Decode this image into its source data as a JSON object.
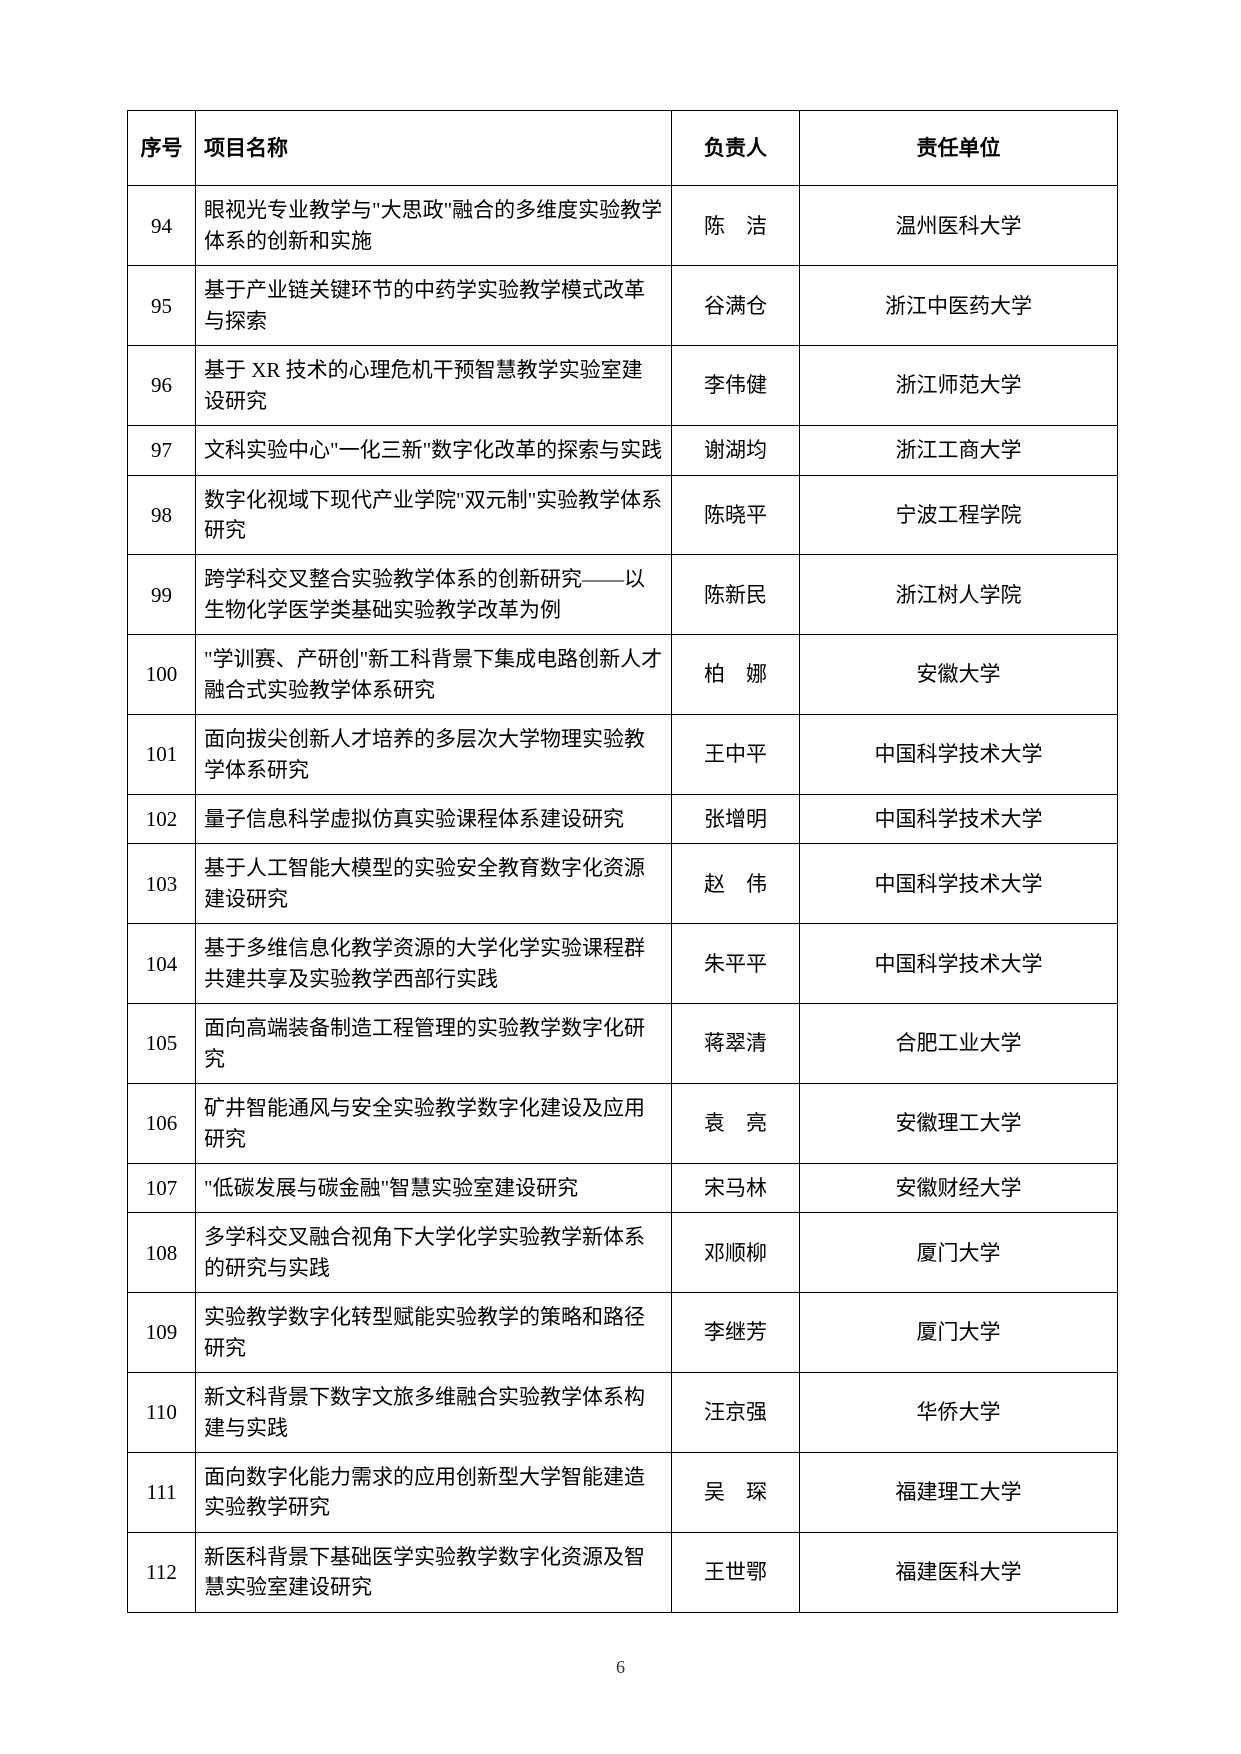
{
  "columns": [
    "序号",
    "项目名称",
    "负责人",
    "责任单位"
  ],
  "rows": [
    {
      "num": "94",
      "name": "眼视光专业教学与\"大思政\"融合的多维度实验教学体系的创新和实施",
      "person": "陈　洁",
      "unit": "温州医科大学"
    },
    {
      "num": "95",
      "name": "基于产业链关键环节的中药学实验教学模式改革与探索",
      "person": "谷满仓",
      "unit": "浙江中医药大学"
    },
    {
      "num": "96",
      "name": "基于 XR 技术的心理危机干预智慧教学实验室建设研究",
      "person": "李伟健",
      "unit": "浙江师范大学"
    },
    {
      "num": "97",
      "name": "文科实验中心\"一化三新\"数字化改革的探索与实践",
      "person": "谢湖均",
      "unit": "浙江工商大学"
    },
    {
      "num": "98",
      "name": "数字化视域下现代产业学院\"双元制\"实验教学体系研究",
      "person": "陈晓平",
      "unit": "宁波工程学院"
    },
    {
      "num": "99",
      "name": "跨学科交叉整合实验教学体系的创新研究——以生物化学医学类基础实验教学改革为例",
      "person": "陈新民",
      "unit": "浙江树人学院"
    },
    {
      "num": "100",
      "name": "\"学训赛、产研创\"新工科背景下集成电路创新人才融合式实验教学体系研究",
      "person": "柏　娜",
      "unit": "安徽大学"
    },
    {
      "num": "101",
      "name": "面向拔尖创新人才培养的多层次大学物理实验教学体系研究",
      "person": "王中平",
      "unit": "中国科学技术大学"
    },
    {
      "num": "102",
      "name": "量子信息科学虚拟仿真实验课程体系建设研究",
      "person": "张增明",
      "unit": "中国科学技术大学"
    },
    {
      "num": "103",
      "name": "基于人工智能大模型的实验安全教育数字化资源建设研究",
      "person": "赵　伟",
      "unit": "中国科学技术大学"
    },
    {
      "num": "104",
      "name": "基于多维信息化教学资源的大学化学实验课程群共建共享及实验教学西部行实践",
      "person": "朱平平",
      "unit": "中国科学技术大学"
    },
    {
      "num": "105",
      "name": "面向高端装备制造工程管理的实验教学数字化研究",
      "person": "蒋翠清",
      "unit": "合肥工业大学"
    },
    {
      "num": "106",
      "name": "矿井智能通风与安全实验教学数字化建设及应用研究",
      "person": "袁　亮",
      "unit": "安徽理工大学"
    },
    {
      "num": "107",
      "name": "\"低碳发展与碳金融\"智慧实验室建设研究",
      "person": "宋马林",
      "unit": "安徽财经大学"
    },
    {
      "num": "108",
      "name": "多学科交叉融合视角下大学化学实验教学新体系的研究与实践",
      "person": "邓顺柳",
      "unit": "厦门大学"
    },
    {
      "num": "109",
      "name": "实验教学数字化转型赋能实验教学的策略和路径研究",
      "person": "李继芳",
      "unit": "厦门大学"
    },
    {
      "num": "110",
      "name": "新文科背景下数字文旅多维融合实验教学体系构建与实践",
      "person": "汪京强",
      "unit": "华侨大学"
    },
    {
      "num": "111",
      "name": "面向数字化能力需求的应用创新型大学智能建造实验教学研究",
      "person": "吴　琛",
      "unit": "福建理工大学"
    },
    {
      "num": "112",
      "name": "新医科背景下基础医学实验教学数字化资源及智慧实验室建设研究",
      "person": "王世鄂",
      "unit": "福建医科大学"
    }
  ],
  "pageNumber": "6"
}
